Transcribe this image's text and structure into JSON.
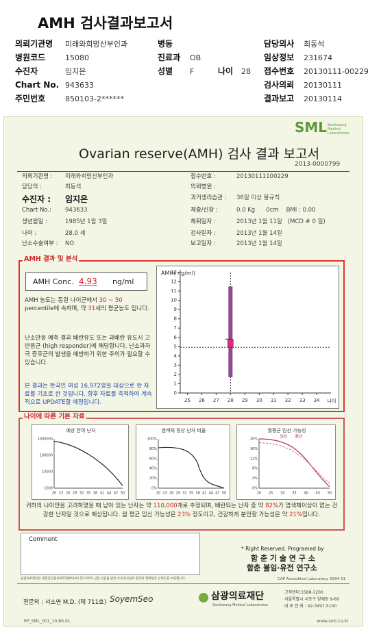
{
  "header": {
    "title": "AMH 검사결과보고서",
    "col1": [
      {
        "label": "의뢰기관명",
        "value": "미래와희망산부인과"
      },
      {
        "label": "병원코드",
        "value": "15080"
      },
      {
        "label": "수진자",
        "value": "임지은"
      },
      {
        "label": "Chart No.",
        "value": "943633"
      },
      {
        "label": "주민번호",
        "value": "850103-2******"
      }
    ],
    "col2": [
      {
        "label": "병동"
      },
      {
        "label": "진료과",
        "value": "OB"
      },
      {
        "label": "성별",
        "value": "F"
      }
    ],
    "age": {
      "label": "나이",
      "value": "28"
    },
    "col3": [
      {
        "label": "담당의사",
        "value": "최동석"
      },
      {
        "label": "임상정보",
        "value": "231674"
      },
      {
        "label": "접수번호",
        "value": "20130111-00229"
      },
      {
        "label": "검사의뢰",
        "value": "20130111"
      },
      {
        "label": "결과보고",
        "value": "20130114"
      }
    ]
  },
  "report": {
    "logo": "SML",
    "logo_sub": "Samkwang Medical Laboratories",
    "title": "Ovarian reserve(AMH) 검사 결과 보고서",
    "report_no": "2013-0000799",
    "left": [
      {
        "label": "의뢰기관명 :",
        "value": "미래와희망산부인과"
      },
      {
        "label": "담당의 :",
        "value": "최동석"
      },
      {
        "label": "수진자 :",
        "value": "임지은"
      },
      {
        "label": "Chart No.:",
        "value": "943633"
      },
      {
        "label": "생년월일 :",
        "value": "1985년 1월 3일"
      },
      {
        "label": "나이 :",
        "value": "28.0 세"
      },
      {
        "label": "난소수술여부 :",
        "value": "NO"
      }
    ],
    "right": [
      {
        "label": "접수번호 :",
        "value": "20130111100229"
      },
      {
        "label": "의뢰병원 :"
      },
      {
        "label": "과거생리습관 :",
        "value": "36일 이상 불규칙"
      },
      {
        "label": "체중/신장 :",
        "value": "0.0 Kg      0cm    BMI : 0.00"
      },
      {
        "label": "채취일자 :",
        "value": "2013년 1월 11일   (MCD # 0 일)"
      },
      {
        "label": "검사일자 :",
        "value": "2013년 1월 14일"
      },
      {
        "label": "보고일자 :",
        "value": "2013년 1월 14일"
      }
    ]
  },
  "analysis": {
    "heading": "AMH 결과 및 분석",
    "conc_label": "AMH Conc.",
    "conc_value": "4.93",
    "conc_unit": "ng/ml",
    "p1": [
      "AMH 농도는 동일 나이군에서 ",
      "30 ~ 50",
      " percentile에 속하며, 약 ",
      "31",
      "세의 평균농도 입니다."
    ],
    "p2": "난소반응 예측 결과 배란유도 또는 과배란 유도시 고반응군 (high responder)에 해당합니다. 난소과자극 증후군의 발생을 예방하기 위한 주의가 필요할 수 있습니다.",
    "p3": "본 결과는 한국인 여성 16,972명을 대상으로 한 자료를 기초로 한 것입니다. 향후 자료를 축적하여 계속적으로 UPDATE할 예정입니다."
  },
  "chart": {
    "type": "range",
    "y_label": "AMH( ng/ml)",
    "x_label": "나이",
    "xlim": [
      24.5,
      35
    ],
    "xticks": [
      25,
      26,
      27,
      28,
      29,
      30,
      31,
      32,
      33,
      34
    ],
    "ylim": [
      0,
      13
    ],
    "yticks": [
      0,
      1,
      2,
      3,
      4,
      5,
      6,
      7,
      8,
      9,
      10,
      11,
      12,
      13
    ],
    "x": 28,
    "range": [
      1.7,
      11.5
    ],
    "value": 4.93
  },
  "basic": {
    "heading": "나이에 따른 기본 자료",
    "charts": [
      {
        "title": "예상 잔여 난자",
        "y_labels": [
          "1000000",
          "100000",
          "10000",
          "1000"
        ],
        "x_labels": [
          "20",
          "23",
          "26",
          "29",
          "32",
          "35",
          "38",
          "41",
          "44",
          "47",
          "50"
        ]
      },
      {
        "title": "염색체 정상 난자 비율",
        "y_labels": [
          "100%",
          "80%",
          "60%",
          "40%",
          "20%",
          "0%"
        ],
        "x_labels": [
          "20",
          "23",
          "26",
          "29",
          "32",
          "35",
          "38",
          "41",
          "44",
          "47",
          "50"
        ]
      },
      {
        "title": "월평균 임신 가능성",
        "y_labels": [
          "20%",
          "16%",
          "12%",
          "8%",
          "4%",
          "0%"
        ],
        "x_labels": [
          "20",
          "25",
          "30",
          "35",
          "40",
          "45",
          "50"
        ],
        "legend": [
          "임신",
          "출산"
        ]
      }
    ],
    "summary": [
      "귀하의 나이만을 고려하였을 때 남아 있는 난자는 약 ",
      "110,000",
      "개로 추정되며, 배란되는 난자 중 약 ",
      "82%",
      "가 염색체이상이 없는 건강한 난자일 것으로 예상됩니다. 월 평균 임신 가능성은 ",
      "23%",
      " 정도이고, 건강하게 분만할 가능성은 약 ",
      "21%",
      "입니다."
    ]
  },
  "comment": {
    "label": "Comment"
  },
  "credit": {
    "line1": "* Right Reserved. Programed by",
    "line2": "함 춘 기 술 연 구 소",
    "line3": "함춘 불임·유전 연구소"
  },
  "footer": {
    "note": "삼광의료재단은 대한진단검사의학회(KSLM) 및 CAP의 신임 인증을 받은 우수검사실로 결과의 정확성과 신뢰도를 보증합니다.",
    "cap": "CAP Accredited Laboratory. 6994-01",
    "doctor": "전문의 : 서소연 M.D. (제 711호)",
    "signature": "SoyemSeo",
    "org": "삼광의료재단",
    "org_en": "Samkwang Medical Laboratories",
    "contact": [
      "고객센터:1588-1200",
      "서울특별시 서초구 양재동 9-60",
      "대 표 전 화 : 02-3497-5100"
    ],
    "form_no": "RP_SML_001_10.B6.01",
    "url": "www.sml.co.kr"
  }
}
